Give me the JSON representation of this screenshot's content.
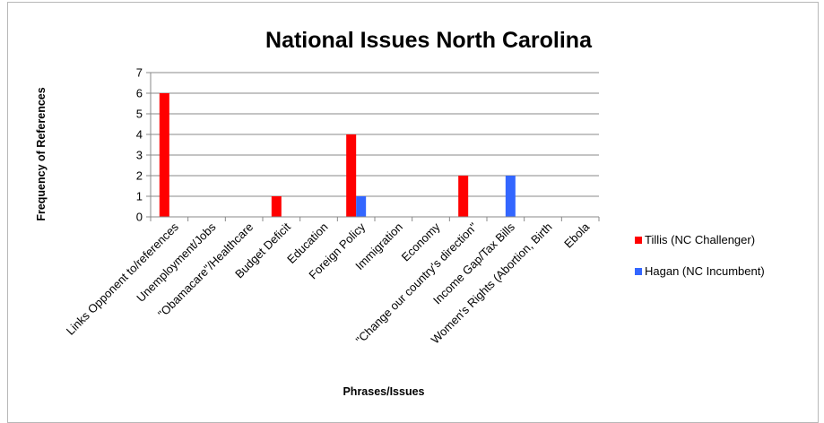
{
  "chart_data": {
    "type": "bar",
    "title": "National Issues  North Carolina",
    "xlabel": "Phrases/Issues",
    "ylabel": "Frequency of References",
    "ylim": [
      0,
      7
    ],
    "yticks": [
      0,
      1,
      2,
      3,
      4,
      5,
      6,
      7
    ],
    "grid": true,
    "legend_position": "right",
    "categories": [
      "Links Opponent to/references",
      "Unemployment/Jobs",
      "\"Obamacare\"/Healthcare",
      "Budget Deficit",
      "Education",
      "Foreign Policy",
      "Immigration",
      "Economy",
      "\"Change our country's direction\"",
      "Income Gap/Tax Bills",
      "Women's Rights (Abortion, Birth",
      "Ebola"
    ],
    "series": [
      {
        "name": "Tillis (NC  Challenger)",
        "color": "#ff0000",
        "values": [
          6,
          0,
          0,
          1,
          0,
          4,
          0,
          0,
          2,
          0,
          0,
          0
        ]
      },
      {
        "name": "Hagan (NC  Incumbent)",
        "color": "#3366ff",
        "values": [
          0,
          0,
          0,
          0,
          0,
          1,
          0,
          0,
          0,
          2,
          0,
          0
        ]
      }
    ]
  }
}
